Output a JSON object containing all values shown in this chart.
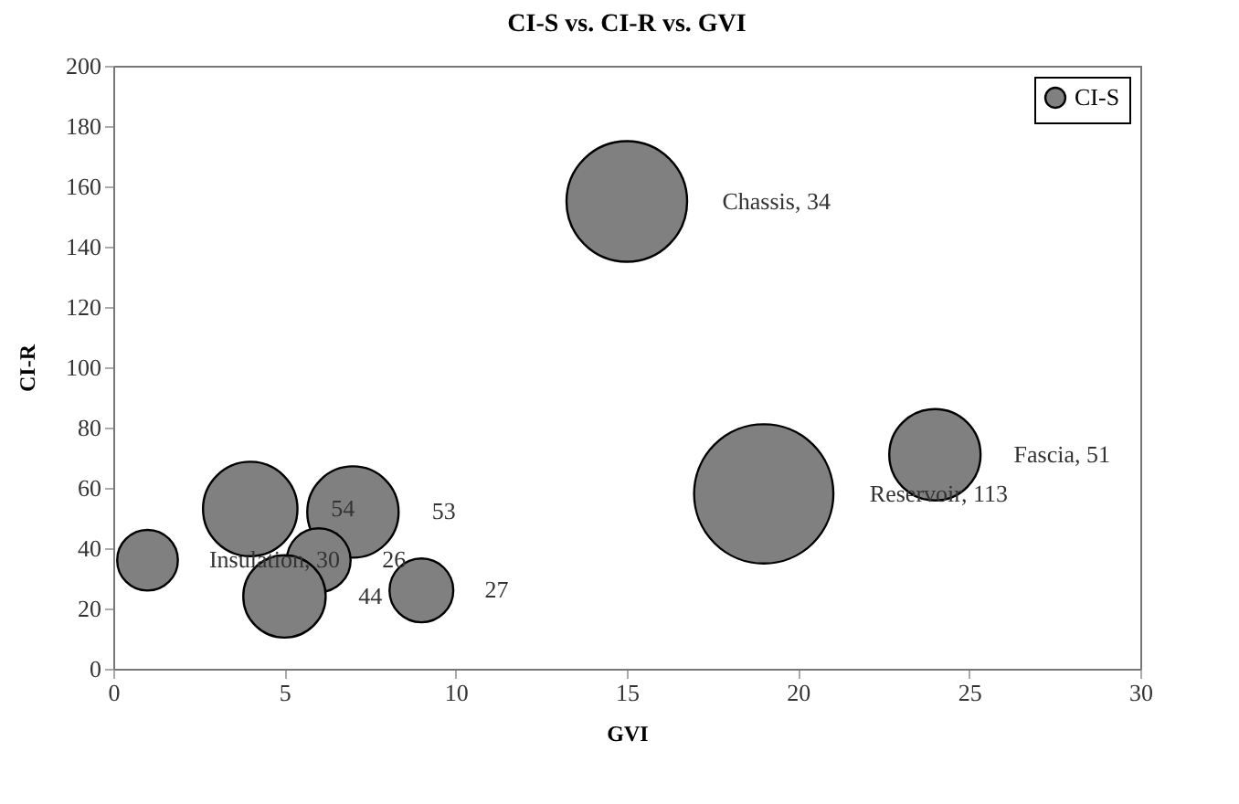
{
  "chart_data": {
    "type": "bubble",
    "title": "CI-S vs. CI-R vs. GVI",
    "xlabel": "GVI",
    "ylabel": "CI-R",
    "x": [
      1,
      4,
      7,
      6,
      5,
      9,
      15,
      19,
      24
    ],
    "series": [
      {
        "name": "CI-S",
        "color": "#808080",
        "values": [
          36,
          53,
          52,
          36,
          24,
          26,
          155,
          58,
          71
        ],
        "sizes": [
          0.19,
          0.46,
          0.43,
          0.21,
          0.35,
          0.21,
          0.75,
          1,
          0.43
        ]
      }
    ],
    "annotations": [
      "Insulation, 30",
      "54",
      "53",
      "26",
      "44",
      "27",
      "Chassis, 34",
      "Reservoir, 113",
      "Fascia, 51"
    ],
    "xlim": [
      0,
      30
    ],
    "xticks": [
      0,
      5,
      10,
      15,
      20,
      25,
      30
    ],
    "ylim": [
      0,
      200
    ],
    "yticks": [
      0,
      20,
      40,
      60,
      80,
      100,
      120,
      140,
      160,
      180,
      200
    ],
    "grid": false,
    "legend": "top right",
    "marker": "circle"
  }
}
